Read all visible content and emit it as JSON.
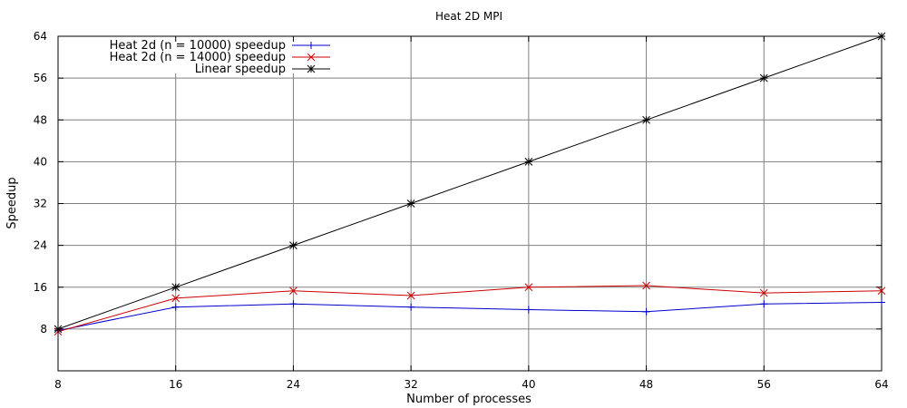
{
  "chart_data": {
    "type": "line",
    "title": "Heat 2D MPI",
    "xlabel": "Number of processes",
    "ylabel": "Speedup",
    "xlim": [
      8,
      64
    ],
    "ylim": [
      0,
      64
    ],
    "xticks": [
      8,
      16,
      24,
      32,
      40,
      48,
      56,
      64
    ],
    "yticks": [
      8,
      16,
      24,
      32,
      40,
      48,
      56,
      64
    ],
    "grid": true,
    "legend_position": "top-left",
    "x": [
      8,
      16,
      24,
      32,
      40,
      48,
      56,
      64
    ],
    "series": [
      {
        "name": "Heat 2d (n = 10000) speedup",
        "color": "#0000cc",
        "marker": "plus",
        "values": [
          7.7,
          12.2,
          12.8,
          12.2,
          11.7,
          11.3,
          12.8,
          13.1
        ]
      },
      {
        "name": "Heat 2d (n = 14000) speedup",
        "color": "#cc0000",
        "marker": "cross",
        "values": [
          7.5,
          13.9,
          15.3,
          14.4,
          16.0,
          16.3,
          14.9,
          15.3
        ]
      },
      {
        "name": "Linear speedup",
        "color": "#000000",
        "marker": "star",
        "values": [
          8,
          16,
          24,
          32,
          40,
          48,
          56,
          64
        ]
      }
    ]
  }
}
